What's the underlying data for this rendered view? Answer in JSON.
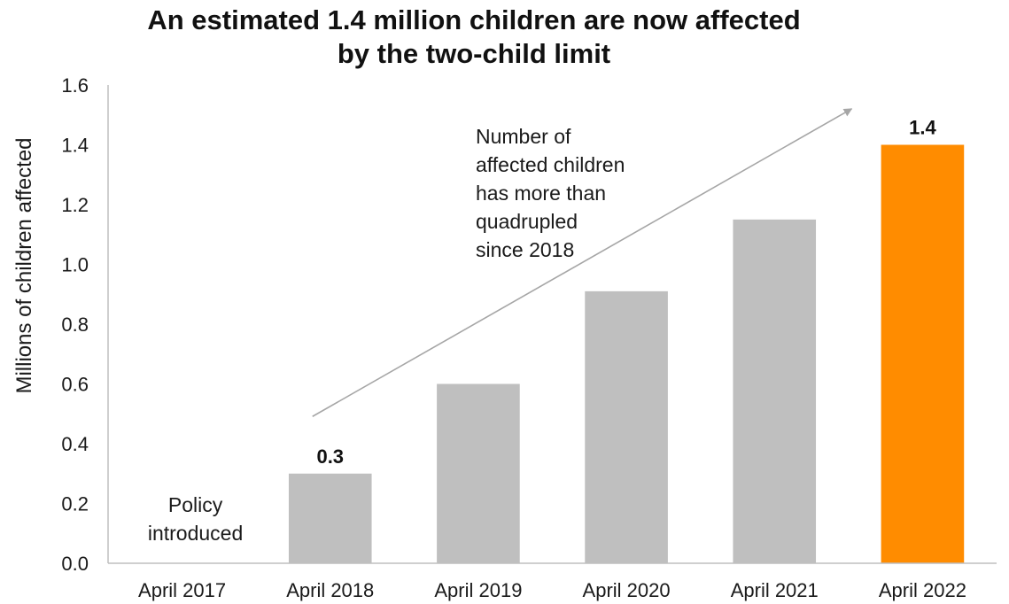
{
  "chart_data": {
    "type": "bar",
    "title": [
      "An estimated 1.4 million children are now affected",
      "by the two-child limit"
    ],
    "ylabel": "Millions of children affected",
    "xlabel": "",
    "ylim": [
      0,
      1.6
    ],
    "yticks": [
      "0.0",
      "0.2",
      "0.4",
      "0.6",
      "0.8",
      "1.0",
      "1.2",
      "1.4",
      "1.6"
    ],
    "categories": [
      "April 2017",
      "April 2018",
      "April 2019",
      "April 2020",
      "April 2021",
      "April 2022"
    ],
    "values": [
      0,
      0.3,
      0.6,
      0.91,
      1.15,
      1.4
    ],
    "bar_colors": [
      "#bfbfbf",
      "#bfbfbf",
      "#bfbfbf",
      "#bfbfbf",
      "#bfbfbf",
      "#ff8c00"
    ],
    "data_labels": [
      {
        "category": "April 2018",
        "text": "0.3"
      },
      {
        "category": "April 2022",
        "text": "1.4"
      }
    ],
    "annotations": {
      "policy": [
        "Policy",
        "introduced"
      ],
      "trend": [
        "Number of",
        "affected children",
        "has more than",
        "quadrupled",
        "since 2018"
      ]
    },
    "trend_arrow": {
      "from": {
        "category": "April 2018",
        "value": 0.5
      },
      "to": {
        "category": "April 2022",
        "value": 1.55
      },
      "color": "#a6a6a6"
    },
    "grid": false,
    "legend": "none"
  }
}
